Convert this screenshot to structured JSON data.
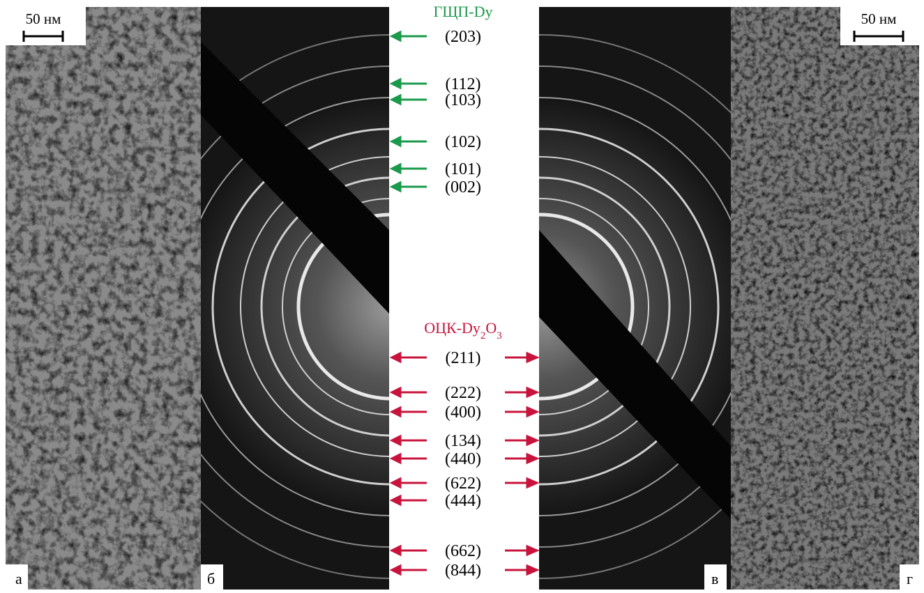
{
  "panels": [
    "а",
    "б",
    "в",
    "г"
  ],
  "scale_bars": [
    "50 нм",
    "50 нм"
  ],
  "phases": [
    {
      "name": [
        "ГЩП-Dy"
      ],
      "color": "#1a9a4a",
      "reflections": [
        "(203)",
        "(112)",
        "(103)",
        "(102)",
        "(101)",
        "(002)"
      ]
    },
    {
      "name": [
        "ОЦК-Dy",
        "2",
        "O",
        "3"
      ],
      "color": "#c8143c",
      "reflections": [
        "(211)",
        "(222)",
        "(400)",
        "(134)",
        "(440)",
        "(622)",
        "(444)",
        "(662)",
        "(844)"
      ]
    }
  ]
}
